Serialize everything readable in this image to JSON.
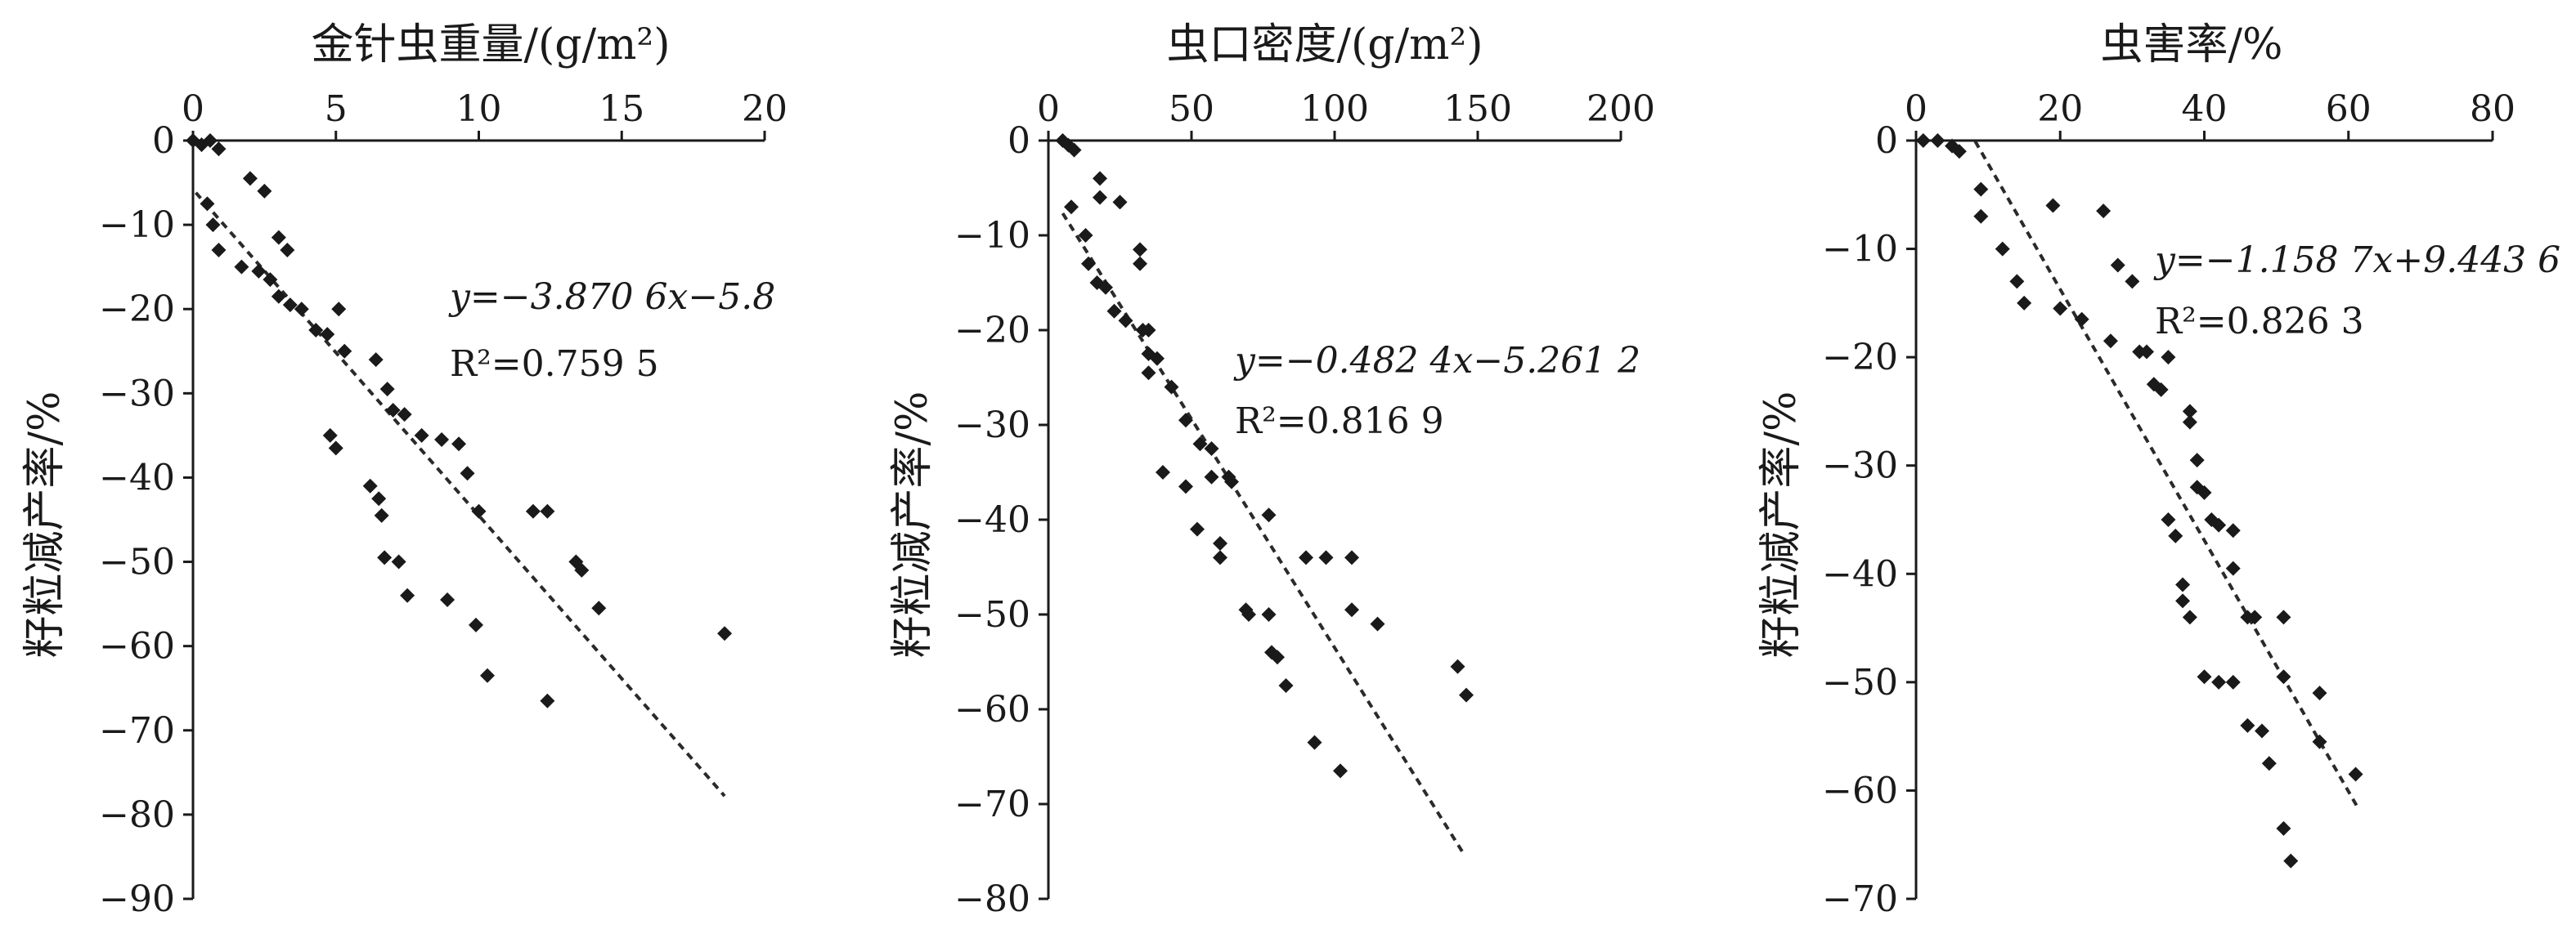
{
  "figure": {
    "chart_data": [
      {
        "type": "scatter",
        "title": "金针虫重量/(g/m²)",
        "ylabel": "籽粒减产率/%",
        "xlim": [
          0,
          20
        ],
        "ylim": [
          -90,
          0
        ],
        "x_ticks": [
          "0",
          "5",
          "10",
          "15",
          "20"
        ],
        "y_ticks": [
          "0",
          "−10",
          "−20",
          "−30",
          "−40",
          "−50",
          "−60",
          "−70",
          "−80",
          "−90"
        ],
        "x_axis_position": "top",
        "grid": false,
        "equation": "y=−3.870 6x−5.8",
        "r2": "R²=0.759 5",
        "trendline": {
          "slope": -3.8706,
          "intercept": -5.8,
          "x_range": [
            0.1,
            18.6
          ]
        },
        "points": [
          {
            "x": 0.0,
            "y": 0.0
          },
          {
            "x": 0.3,
            "y": -0.5
          },
          {
            "x": 0.6,
            "y": 0.0
          },
          {
            "x": 0.9,
            "y": -1.0
          },
          {
            "x": 0.5,
            "y": -7.5
          },
          {
            "x": 0.7,
            "y": -10.0
          },
          {
            "x": 0.9,
            "y": -13.0
          },
          {
            "x": 2.0,
            "y": -4.5
          },
          {
            "x": 2.5,
            "y": -6.0
          },
          {
            "x": 1.7,
            "y": -15.0
          },
          {
            "x": 2.3,
            "y": -15.5
          },
          {
            "x": 2.7,
            "y": -16.5
          },
          {
            "x": 3.0,
            "y": -11.5
          },
          {
            "x": 3.3,
            "y": -13.0
          },
          {
            "x": 3.0,
            "y": -18.5
          },
          {
            "x": 3.4,
            "y": -19.5
          },
          {
            "x": 3.8,
            "y": -20.0
          },
          {
            "x": 4.3,
            "y": -22.5
          },
          {
            "x": 4.7,
            "y": -23.0
          },
          {
            "x": 5.1,
            "y": -20.0
          },
          {
            "x": 5.3,
            "y": -25.0
          },
          {
            "x": 6.4,
            "y": -26.0
          },
          {
            "x": 6.8,
            "y": -29.5
          },
          {
            "x": 7.0,
            "y": -32.0
          },
          {
            "x": 7.4,
            "y": -32.5
          },
          {
            "x": 8.0,
            "y": -35.0
          },
          {
            "x": 8.7,
            "y": -35.5
          },
          {
            "x": 9.3,
            "y": -36.0
          },
          {
            "x": 9.6,
            "y": -39.5
          },
          {
            "x": 10.0,
            "y": -44.0
          },
          {
            "x": 11.9,
            "y": -44.0
          },
          {
            "x": 12.4,
            "y": -44.0
          },
          {
            "x": 4.8,
            "y": -35.0
          },
          {
            "x": 5.0,
            "y": -36.5
          },
          {
            "x": 6.2,
            "y": -41.0
          },
          {
            "x": 6.5,
            "y": -42.5
          },
          {
            "x": 6.6,
            "y": -44.5
          },
          {
            "x": 6.7,
            "y": -49.5
          },
          {
            "x": 7.2,
            "y": -50.0
          },
          {
            "x": 7.5,
            "y": -54.0
          },
          {
            "x": 8.9,
            "y": -54.5
          },
          {
            "x": 9.9,
            "y": -57.5
          },
          {
            "x": 10.3,
            "y": -63.5
          },
          {
            "x": 12.4,
            "y": -66.5
          },
          {
            "x": 13.4,
            "y": -50.0
          },
          {
            "x": 13.6,
            "y": -51.0
          },
          {
            "x": 14.2,
            "y": -55.5
          },
          {
            "x": 18.6,
            "y": -58.5
          }
        ]
      },
      {
        "type": "scatter",
        "title": "虫口密度/(g/m²)",
        "ylabel": "籽粒减产率/%",
        "xlim": [
          0,
          200
        ],
        "ylim": [
          -80,
          0
        ],
        "x_ticks": [
          "0",
          "50",
          "100",
          "150",
          "200"
        ],
        "y_ticks": [
          "0",
          "−10",
          "−20",
          "−30",
          "−40",
          "−50",
          "−60",
          "−70",
          "−80"
        ],
        "x_axis_position": "top",
        "grid": false,
        "equation": "y=−0.482 4x−5.261 2",
        "r2": "R²=0.816 9",
        "trendline": {
          "slope": -0.4824,
          "intercept": -5.2612,
          "x_range": [
            5,
            145
          ]
        },
        "points": [
          {
            "x": 5,
            "y": 0.0
          },
          {
            "x": 7,
            "y": -0.5
          },
          {
            "x": 9,
            "y": -1.0
          },
          {
            "x": 8,
            "y": -7.0
          },
          {
            "x": 13,
            "y": -10.0
          },
          {
            "x": 14,
            "y": -13.0
          },
          {
            "x": 18,
            "y": -4.0
          },
          {
            "x": 18,
            "y": -6.0
          },
          {
            "x": 25,
            "y": -6.5
          },
          {
            "x": 17,
            "y": -15.0
          },
          {
            "x": 20,
            "y": -15.5
          },
          {
            "x": 23,
            "y": -18.0
          },
          {
            "x": 27,
            "y": -19.0
          },
          {
            "x": 32,
            "y": -11.5
          },
          {
            "x": 32,
            "y": -13.0
          },
          {
            "x": 33,
            "y": -20.0
          },
          {
            "x": 35,
            "y": -20.0
          },
          {
            "x": 35,
            "y": -22.5
          },
          {
            "x": 38,
            "y": -23.0
          },
          {
            "x": 35,
            "y": -24.5
          },
          {
            "x": 43,
            "y": -26.0
          },
          {
            "x": 48,
            "y": -29.5
          },
          {
            "x": 53,
            "y": -32.0
          },
          {
            "x": 57,
            "y": -32.5
          },
          {
            "x": 57,
            "y": -35.5
          },
          {
            "x": 63,
            "y": -35.5
          },
          {
            "x": 64,
            "y": -36.0
          },
          {
            "x": 40,
            "y": -35.0
          },
          {
            "x": 48,
            "y": -36.5
          },
          {
            "x": 52,
            "y": -41.0
          },
          {
            "x": 60,
            "y": -42.5
          },
          {
            "x": 60,
            "y": -44.0
          },
          {
            "x": 77,
            "y": -39.5
          },
          {
            "x": 90,
            "y": -44.0
          },
          {
            "x": 97,
            "y": -44.0
          },
          {
            "x": 106,
            "y": -44.0
          },
          {
            "x": 69,
            "y": -49.5
          },
          {
            "x": 70,
            "y": -50.0
          },
          {
            "x": 77,
            "y": -50.0
          },
          {
            "x": 78,
            "y": -54.0
          },
          {
            "x": 80,
            "y": -54.5
          },
          {
            "x": 83,
            "y": -57.5
          },
          {
            "x": 93,
            "y": -63.5
          },
          {
            "x": 102,
            "y": -66.5
          },
          {
            "x": 106,
            "y": -49.5
          },
          {
            "x": 115,
            "y": -51.0
          },
          {
            "x": 143,
            "y": -55.5
          },
          {
            "x": 146,
            "y": -58.5
          }
        ]
      },
      {
        "type": "scatter",
        "title": "虫害率/%",
        "ylabel": "籽粒减产率/%",
        "xlim": [
          0,
          80
        ],
        "ylim": [
          -70,
          0
        ],
        "x_ticks": [
          "0",
          "20",
          "40",
          "60",
          "80"
        ],
        "y_ticks": [
          "0",
          "−10",
          "−20",
          "−30",
          "−40",
          "−50",
          "−60",
          "−70"
        ],
        "x_axis_position": "top",
        "grid": false,
        "equation": "y=−1.158 7x+9.443 6",
        "r2": "R²=0.826 3",
        "trendline": {
          "slope": -1.1587,
          "intercept": 9.4436,
          "x_range": [
            8.2,
            61.5
          ]
        },
        "points": [
          {
            "x": 1,
            "y": 0.0
          },
          {
            "x": 3,
            "y": 0.0
          },
          {
            "x": 5,
            "y": -0.5
          },
          {
            "x": 6,
            "y": -1.0
          },
          {
            "x": 9,
            "y": -4.5
          },
          {
            "x": 9,
            "y": -7.0
          },
          {
            "x": 12,
            "y": -10.0
          },
          {
            "x": 14,
            "y": -13.0
          },
          {
            "x": 15,
            "y": -15.0
          },
          {
            "x": 19,
            "y": -6.0
          },
          {
            "x": 20,
            "y": -15.5
          },
          {
            "x": 23,
            "y": -16.5
          },
          {
            "x": 27,
            "y": -18.5
          },
          {
            "x": 26,
            "y": -6.5
          },
          {
            "x": 28,
            "y": -11.5
          },
          {
            "x": 30,
            "y": -13.0
          },
          {
            "x": 31,
            "y": -19.5
          },
          {
            "x": 32,
            "y": -19.5
          },
          {
            "x": 33,
            "y": -22.5
          },
          {
            "x": 34,
            "y": -23.0
          },
          {
            "x": 35,
            "y": -20.0
          },
          {
            "x": 38,
            "y": -25.0
          },
          {
            "x": 38,
            "y": -26.0
          },
          {
            "x": 39,
            "y": -29.5
          },
          {
            "x": 39,
            "y": -32.0
          },
          {
            "x": 40,
            "y": -32.5
          },
          {
            "x": 41,
            "y": -35.0
          },
          {
            "x": 42,
            "y": -35.5
          },
          {
            "x": 44,
            "y": -36.0
          },
          {
            "x": 35,
            "y": -35.0
          },
          {
            "x": 36,
            "y": -36.5
          },
          {
            "x": 37,
            "y": -41.0
          },
          {
            "x": 37,
            "y": -42.5
          },
          {
            "x": 38,
            "y": -44.0
          },
          {
            "x": 44,
            "y": -39.5
          },
          {
            "x": 46,
            "y": -44.0
          },
          {
            "x": 47,
            "y": -44.0
          },
          {
            "x": 51,
            "y": -44.0
          },
          {
            "x": 40,
            "y": -49.5
          },
          {
            "x": 42,
            "y": -50.0
          },
          {
            "x": 44,
            "y": -50.0
          },
          {
            "x": 46,
            "y": -54.0
          },
          {
            "x": 48,
            "y": -54.5
          },
          {
            "x": 49,
            "y": -57.5
          },
          {
            "x": 51,
            "y": -49.5
          },
          {
            "x": 56,
            "y": -51.0
          },
          {
            "x": 56,
            "y": -55.5
          },
          {
            "x": 51,
            "y": -63.5
          },
          {
            "x": 52,
            "y": -66.5
          },
          {
            "x": 61,
            "y": -58.5
          }
        ]
      }
    ]
  }
}
